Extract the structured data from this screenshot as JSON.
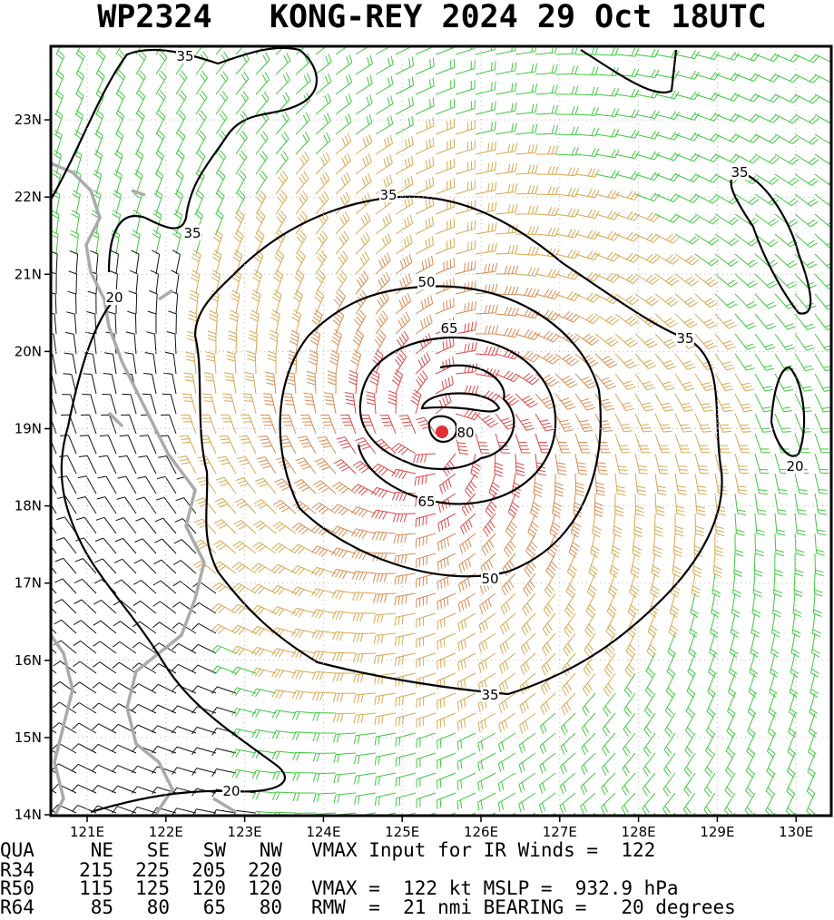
{
  "title": "WP2324   KONG-REY 2024 29 Oct 18UTC",
  "x_axis": {
    "labels": [
      "121E",
      "122E",
      "123E",
      "124E",
      "125E",
      "126E",
      "127E",
      "128E",
      "129E",
      "130E"
    ]
  },
  "y_axis": {
    "labels": [
      "14N",
      "15N",
      "16N",
      "17N",
      "18N",
      "19N",
      "20N",
      "21N",
      "22N",
      "23N"
    ]
  },
  "contour_labels": [
    "35",
    "35",
    "35",
    "35",
    "35",
    "20",
    "50",
    "65",
    "80",
    "65",
    "50",
    "35",
    "20",
    "20"
  ],
  "table": {
    "header": [
      "QUA",
      "NE",
      "SE",
      "SW",
      "NW"
    ],
    "rows": [
      [
        "R34",
        "215",
        "225",
        "205",
        "220"
      ],
      [
        "R50",
        "115",
        "125",
        "120",
        "120"
      ],
      [
        "R64",
        "85",
        "80",
        "65",
        "80"
      ]
    ]
  },
  "info": [
    "VMAX Input for IR Winds =  122",
    "VMAX =  122 kt MSLP =  932.9 hPa",
    "RMW  =  21 nmi BEARING =   20 degrees"
  ]
}
